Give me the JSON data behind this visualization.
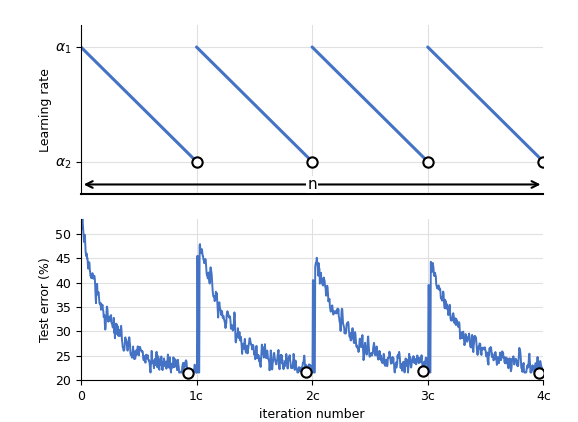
{
  "fig_width": 5.78,
  "fig_height": 4.22,
  "dpi": 100,
  "top_panel": {
    "alpha1": 1.0,
    "alpha2": 0.05,
    "num_cycles": 4,
    "line_color": "#4472C4",
    "line_width": 2.2,
    "circle_color": "black",
    "circle_size": 55,
    "ylabel": "Learning rate",
    "alpha1_label": "$\\alpha_1$",
    "alpha2_label": "$\\alpha_2$",
    "arrow_label": "n",
    "grid_color": "#e0e0e0",
    "ytick_positions": [
      0.05,
      1.0
    ]
  },
  "bottom_panel": {
    "ylabel": "Test error (%)",
    "xlabel": "iteration number",
    "line_color": "#4472C4",
    "line_width": 1.4,
    "circle_color": "black",
    "circle_size": 55,
    "ylim": [
      20,
      53
    ],
    "yticks": [
      20,
      25,
      30,
      35,
      40,
      45,
      50
    ],
    "xtick_labels": [
      "0",
      "1c",
      "2c",
      "3c",
      "4c"
    ],
    "grid_color": "#e0e0e0"
  },
  "bg_color": "#ffffff",
  "seed": 17
}
